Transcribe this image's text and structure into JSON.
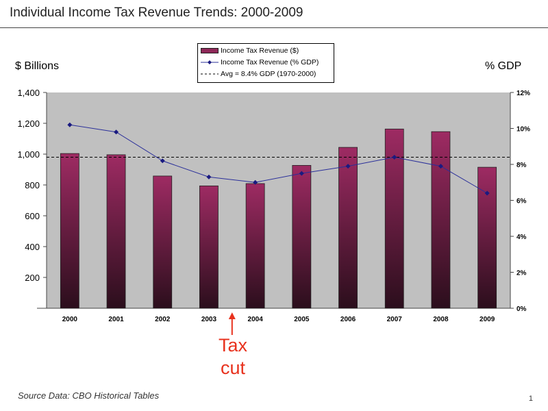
{
  "title": "Individual Income Tax Revenue Trends:  2000-2009",
  "source": "Source Data:  CBO Historical Tables",
  "page_number": "1",
  "annotation": {
    "line1": "Tax",
    "line2": "cut",
    "arrow_at": "2003-2004"
  },
  "colors": {
    "bar_top": "#9e2b63",
    "bar_bottom": "#2b0e1c",
    "line": "#2a2f9a",
    "marker": "#1a1a80",
    "plot_bg": "#c0c0c0",
    "annotation": "#e8321e"
  },
  "chart_data": {
    "type": "bar+line",
    "title": "Individual Income Tax Revenue Trends:  2000-2009",
    "ylabel": "$ Billions",
    "y2label": "% GDP",
    "categories": [
      "2000",
      "2001",
      "2002",
      "2003",
      "2004",
      "2005",
      "2006",
      "2007",
      "2008",
      "2009"
    ],
    "ylim": [
      0,
      1400
    ],
    "yticks": [
      "1,400",
      "1,200",
      "1,000",
      "800",
      "600",
      "400",
      "200"
    ],
    "y2lim": [
      0,
      12
    ],
    "y2ticks": [
      "12%",
      "10%",
      "8%",
      "6%",
      "4%",
      "2%",
      "0%"
    ],
    "grid": false,
    "legend_placement": "top-center",
    "series": [
      {
        "name": "Income Tax Revenue ($)",
        "type": "bar",
        "axis": "left",
        "values": [
          1004,
          996,
          858,
          794,
          809,
          927,
          1044,
          1163,
          1146,
          915
        ]
      },
      {
        "name": "Income Tax Revenue (% GDP)",
        "type": "line",
        "axis": "right",
        "values": [
          10.2,
          9.8,
          8.2,
          7.3,
          7.0,
          7.5,
          7.9,
          8.4,
          7.9,
          6.4
        ]
      },
      {
        "name": "Avg = 8.4% GDP (1970-2000)",
        "type": "hline",
        "axis": "right",
        "value": 8.4
      }
    ]
  }
}
